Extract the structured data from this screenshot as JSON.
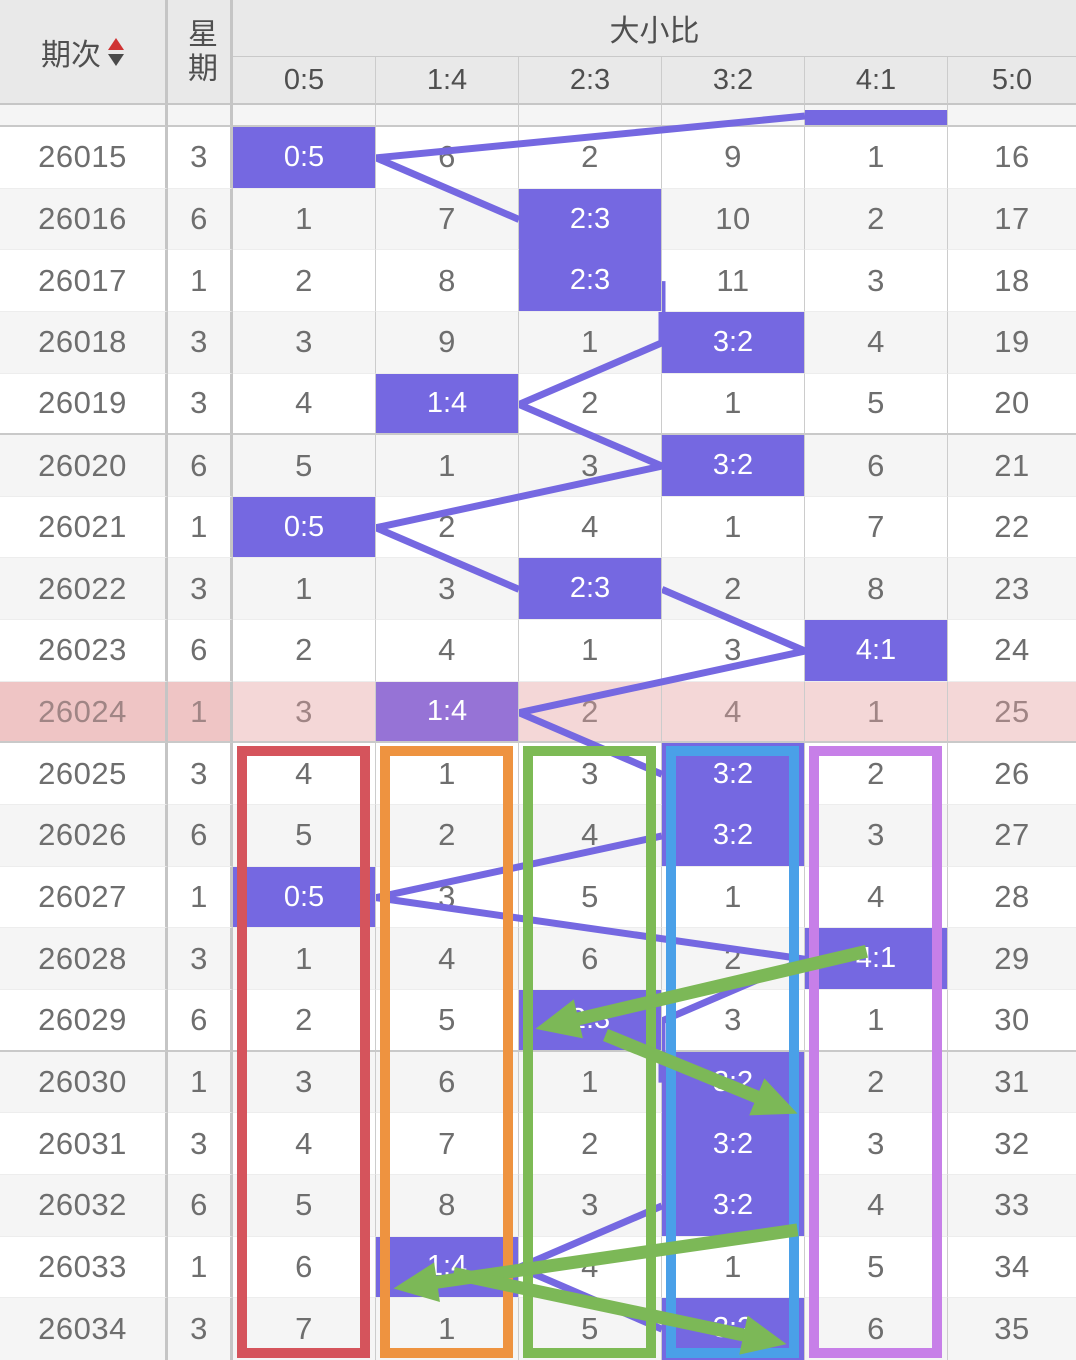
{
  "header": {
    "period_label": "期次",
    "week_label": "星期",
    "group_label": "大小比",
    "ratios": [
      "0:5",
      "1:4",
      "2:3",
      "3:2",
      "4:1",
      "5:0"
    ]
  },
  "chart_data": {
    "type": "table",
    "title": "大小比",
    "columns": [
      "期次",
      "星期",
      "0:5",
      "1:4",
      "2:3",
      "3:2",
      "4:1",
      "5:0"
    ],
    "prev_partial_row": {
      "hl_ratio": "4:1"
    },
    "rows": [
      {
        "period": "26015",
        "week": "3",
        "cells": [
          "0:5",
          "6",
          "2",
          "9",
          "1",
          "16"
        ],
        "hl": 0
      },
      {
        "period": "26016",
        "week": "6",
        "cells": [
          "1",
          "7",
          "2:3",
          "10",
          "2",
          "17"
        ],
        "hl": 2
      },
      {
        "period": "26017",
        "week": "1",
        "cells": [
          "2",
          "8",
          "2:3",
          "11",
          "3",
          "18"
        ],
        "hl": 2
      },
      {
        "period": "26018",
        "week": "3",
        "cells": [
          "3",
          "9",
          "1",
          "3:2",
          "4",
          "19"
        ],
        "hl": 3
      },
      {
        "period": "26019",
        "week": "3",
        "cells": [
          "4",
          "1:4",
          "2",
          "1",
          "5",
          "20"
        ],
        "hl": 1,
        "group_end": true
      },
      {
        "period": "26020",
        "week": "6",
        "cells": [
          "5",
          "1",
          "3",
          "3:2",
          "6",
          "21"
        ],
        "hl": 3
      },
      {
        "period": "26021",
        "week": "1",
        "cells": [
          "0:5",
          "2",
          "4",
          "1",
          "7",
          "22"
        ],
        "hl": 0
      },
      {
        "period": "26022",
        "week": "3",
        "cells": [
          "1",
          "3",
          "2:3",
          "2",
          "8",
          "23"
        ],
        "hl": 2
      },
      {
        "period": "26023",
        "week": "6",
        "cells": [
          "2",
          "4",
          "1",
          "3",
          "4:1",
          "24"
        ],
        "hl": 4
      },
      {
        "period": "26024",
        "week": "1",
        "cells": [
          "3",
          "1:4",
          "2",
          "4",
          "1",
          "25"
        ],
        "hl": 1,
        "row_hl": true,
        "group_end": true
      },
      {
        "period": "26025",
        "week": "3",
        "cells": [
          "4",
          "1",
          "3",
          "3:2",
          "2",
          "26"
        ],
        "hl": 3
      },
      {
        "period": "26026",
        "week": "6",
        "cells": [
          "5",
          "2",
          "4",
          "3:2",
          "3",
          "27"
        ],
        "hl": 3
      },
      {
        "period": "26027",
        "week": "1",
        "cells": [
          "0:5",
          "3",
          "5",
          "1",
          "4",
          "28"
        ],
        "hl": 0
      },
      {
        "period": "26028",
        "week": "3",
        "cells": [
          "1",
          "4",
          "6",
          "2",
          "4:1",
          "29"
        ],
        "hl": 4
      },
      {
        "period": "26029",
        "week": "6",
        "cells": [
          "2",
          "5",
          "2:3",
          "3",
          "1",
          "30"
        ],
        "hl": 2,
        "group_end": true
      },
      {
        "period": "26030",
        "week": "1",
        "cells": [
          "3",
          "6",
          "1",
          "3:2",
          "2",
          "31"
        ],
        "hl": 3
      },
      {
        "period": "26031",
        "week": "3",
        "cells": [
          "4",
          "7",
          "2",
          "3:2",
          "3",
          "32"
        ],
        "hl": 3
      },
      {
        "period": "26032",
        "week": "6",
        "cells": [
          "5",
          "8",
          "3",
          "3:2",
          "4",
          "33"
        ],
        "hl": 3
      },
      {
        "period": "26033",
        "week": "1",
        "cells": [
          "6",
          "1:4",
          "4",
          "1",
          "5",
          "34"
        ],
        "hl": 1
      },
      {
        "period": "26034",
        "week": "3",
        "cells": [
          "7",
          "1",
          "5",
          "3:2",
          "6",
          "35"
        ],
        "hl": 3
      }
    ]
  },
  "annotations": {
    "column_frames": [
      {
        "ratio": "0:5",
        "color": "#d5545c"
      },
      {
        "ratio": "1:4",
        "color": "#ee9340"
      },
      {
        "ratio": "2:3",
        "color": "#7dba55"
      },
      {
        "ratio": "3:2",
        "color": "#4aa0e8"
      },
      {
        "ratio": "4:1",
        "color": "#c77fe8"
      }
    ],
    "arrows": [
      {
        "from_period": "26028",
        "from_ratio": "4:1",
        "to_period": "26029",
        "to_ratio": "2:3"
      },
      {
        "from_period": "26029",
        "from_ratio": "2:3",
        "to_period": "26030",
        "to_ratio": "3:2"
      },
      {
        "from_period": "26032",
        "from_ratio": "3:2",
        "to_period": "26033",
        "to_ratio": "1:4"
      },
      {
        "from_period": "26033",
        "from_ratio": "1:4",
        "to_period": "26034",
        "to_ratio": "3:2"
      }
    ]
  },
  "colors": {
    "highlight_cell": "#7568e1",
    "highlight_cell_on_pink": "#9673d6",
    "trend_line": "#7568e1",
    "arrow": "#7cb857",
    "row_highlight": "#f4d7d7",
    "row_highlight_left": "#efc5c5",
    "row_highlight_text": "#a08585",
    "header_bg": "#e9e9e9",
    "row_alt": "#f5f5f5",
    "sort_up": "#cf3333",
    "sort_down": "#4a4a4a"
  }
}
